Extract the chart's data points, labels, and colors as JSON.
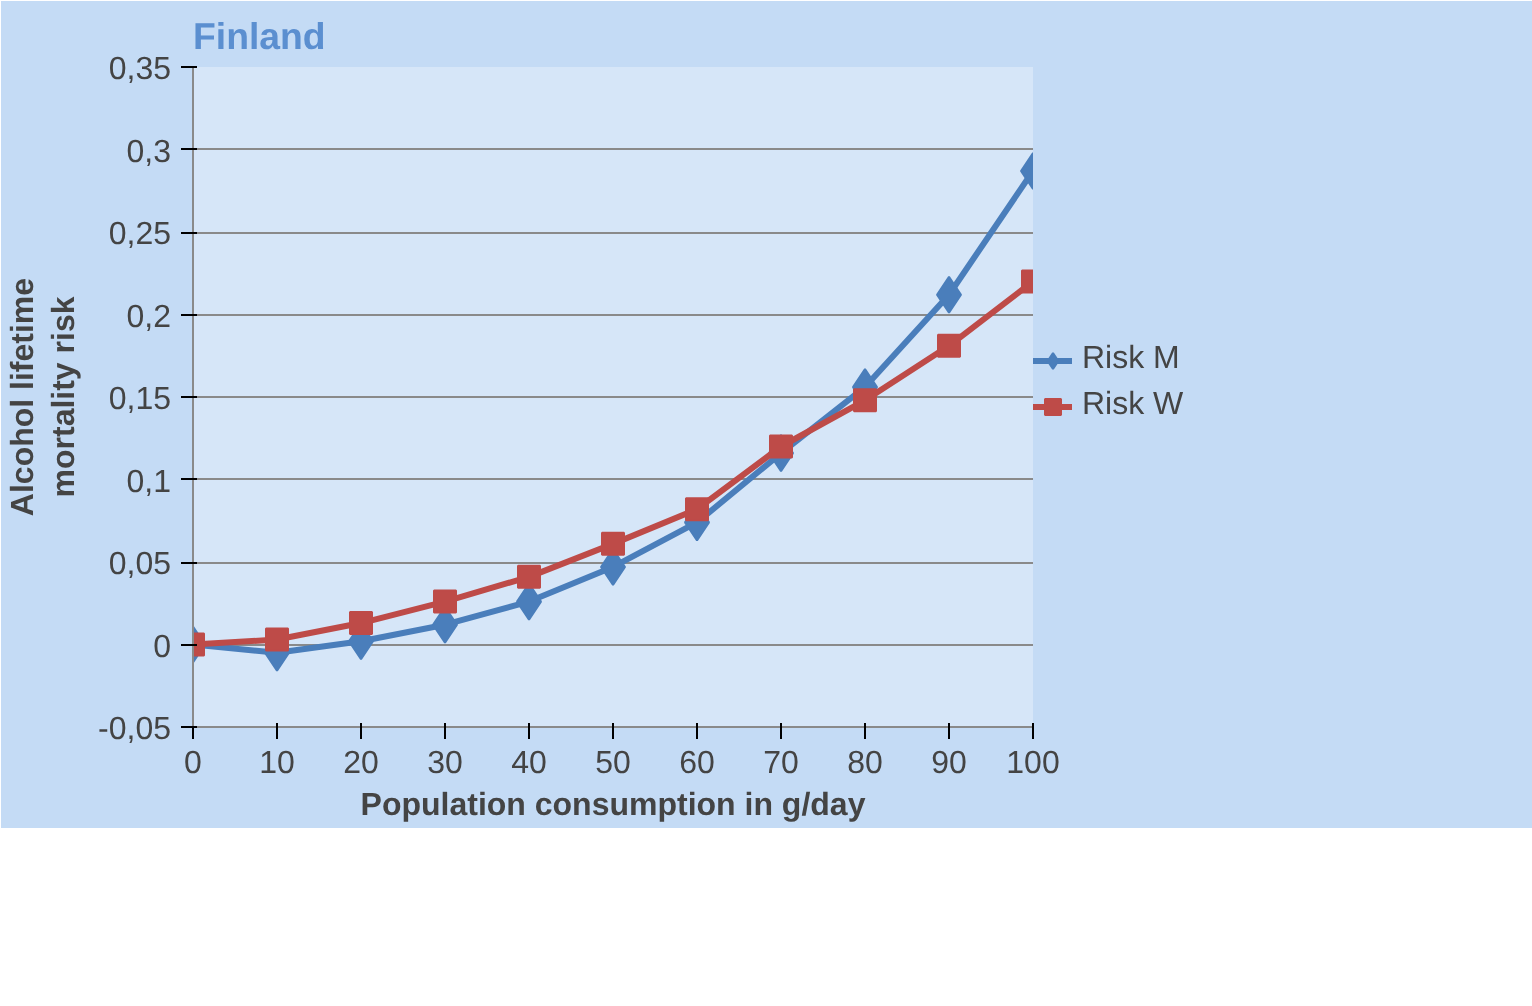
{
  "chart_data": {
    "type": "line",
    "title": "Finland",
    "xlabel": "Population consumption in g/day",
    "ylabel": "Alcohol lifetime\nmortality risk",
    "x": [
      0,
      10,
      20,
      30,
      40,
      50,
      60,
      70,
      80,
      90,
      100
    ],
    "series": [
      {
        "name": "Risk M",
        "color": "#4a7ebb",
        "marker": "diamond",
        "values": [
          0,
          -0.005,
          0.002,
          0.012,
          0.026,
          0.047,
          0.074,
          0.116,
          0.156,
          0.212,
          0.287
        ]
      },
      {
        "name": "Risk W",
        "color": "#be4b48",
        "marker": "square",
        "values": [
          0,
          0.003,
          0.013,
          0.026,
          0.041,
          0.061,
          0.082,
          0.12,
          0.148,
          0.181,
          0.22
        ]
      }
    ],
    "xlim": [
      0,
      100
    ],
    "xticks": [
      0,
      10,
      20,
      30,
      40,
      50,
      60,
      70,
      80,
      90,
      100
    ],
    "ylim": [
      -0.05,
      0.35
    ],
    "yticks": [
      {
        "value": -0.05,
        "label": "-0,05"
      },
      0,
      {
        "value": 0.05,
        "label": "0,05"
      },
      {
        "value": 0.1,
        "label": "0,1"
      },
      {
        "value": 0.15,
        "label": "0,15"
      },
      {
        "value": 0.2,
        "label": "0,2"
      },
      {
        "value": 0.25,
        "label": "0,25"
      },
      {
        "value": 0.3,
        "label": "0,3"
      },
      {
        "value": 0.35,
        "label": "0,35"
      }
    ],
    "grid": "y",
    "legend": "right",
    "line_style": "solid"
  }
}
